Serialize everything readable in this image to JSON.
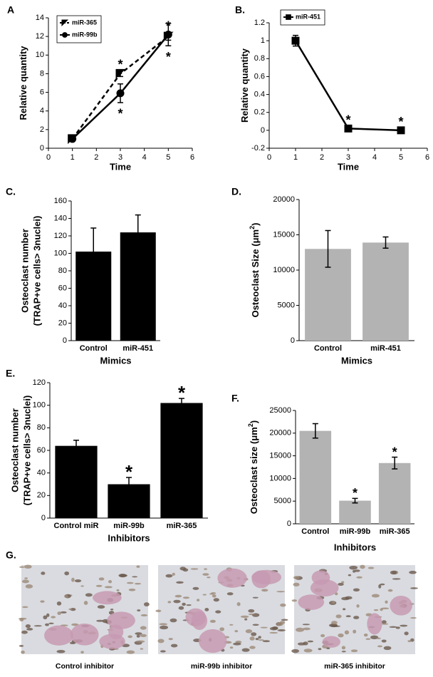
{
  "chart_data": [
    {
      "type": "line",
      "panel_label": "A",
      "xlabel": "Time",
      "ylabel": "Relative quantity",
      "x": [
        1,
        3,
        5
      ],
      "xlim": [
        0,
        6
      ],
      "xticks": [
        0,
        1,
        2,
        3,
        4,
        5,
        6
      ],
      "ylim": [
        0,
        14
      ],
      "yticks": [
        0,
        2,
        4,
        6,
        8,
        10,
        12,
        14
      ],
      "legend": "upper-left",
      "series": [
        {
          "name": "miR-365",
          "color": "#000000",
          "line_style": "dashed",
          "marker": "triangle",
          "values": [
            1,
            8,
            12
          ],
          "errors": [
            0.2,
            0.3,
            0.4
          ],
          "significance": [
            null,
            "*",
            "*"
          ],
          "significance_position": "above"
        },
        {
          "name": "miR-99b",
          "color": "#000000",
          "line_style": "solid",
          "marker": "circle",
          "values": [
            1,
            5.9,
            12.2
          ],
          "errors": [
            0.2,
            1,
            1.2
          ],
          "significance": [
            null,
            "*",
            "*"
          ],
          "significance_position": "below"
        }
      ]
    },
    {
      "type": "line",
      "panel_label": "B.",
      "xlabel": "Time",
      "ylabel": "Relative quantity",
      "x": [
        1,
        3,
        5
      ],
      "xlim": [
        0,
        6
      ],
      "xticks": [
        0,
        1,
        2,
        3,
        4,
        5,
        6
      ],
      "ylim": [
        -0.2,
        1.2
      ],
      "yticks": [
        -0.2,
        0,
        0.2,
        0.4,
        0.6,
        0.8,
        1,
        1.2
      ],
      "legend": "upper-left",
      "series": [
        {
          "name": "miR-451",
          "color": "#000000",
          "line_style": "solid",
          "marker": "square",
          "values": [
            1,
            0.02,
            0
          ],
          "errors": [
            0.06,
            0.02,
            0.02
          ],
          "significance": [
            null,
            "*",
            "*"
          ],
          "significance_position": "above"
        }
      ]
    },
    {
      "type": "bar",
      "panel_label": "C.",
      "xlabel": "Mimics",
      "ylabel": [
        "Osteoclast number",
        "(TRAP+ve cells> 3nuclei)"
      ],
      "categories": [
        "Control",
        "miR-451"
      ],
      "values": [
        102,
        124
      ],
      "errors": [
        27,
        20
      ],
      "color": "#000000",
      "ylim": [
        0,
        160
      ],
      "yticks": [
        0,
        20,
        40,
        60,
        80,
        100,
        120,
        140,
        160
      ]
    },
    {
      "type": "bar",
      "panel_label": "D.",
      "xlabel": "Mimics",
      "ylabel": "Osteoclast Size (μm",
      "ylabel_superscript": "2",
      "ylabel_end": ")",
      "categories": [
        "Control",
        "miR-451"
      ],
      "values": [
        13000,
        13900
      ],
      "errors": [
        2600,
        800
      ],
      "color": "#b3b3b3",
      "ylim": [
        0,
        20000
      ],
      "yticks": [
        0,
        5000,
        10000,
        15000,
        20000
      ]
    },
    {
      "type": "bar",
      "panel_label": "E.",
      "xlabel": "Inhibitors",
      "ylabel": [
        "Osteoclast number",
        "(TRAP+ve cells> 3nuclei)"
      ],
      "categories": [
        "Control miR",
        "miR-99b",
        "miR-365"
      ],
      "values": [
        64,
        30,
        102
      ],
      "errors": [
        5,
        6,
        4
      ],
      "color": "#000000",
      "significance": [
        null,
        "*",
        "*"
      ],
      "ylim": [
        0,
        120
      ],
      "yticks": [
        0,
        20,
        40,
        60,
        80,
        100,
        120
      ]
    },
    {
      "type": "bar",
      "panel_label": "F.",
      "xlabel": "Inhibitors",
      "ylabel": "Osteoclast size (μm",
      "ylabel_superscript": "2",
      "ylabel_end": ")",
      "categories": [
        "Control",
        "miR-99b",
        "miR-365"
      ],
      "values": [
        20500,
        5100,
        13400
      ],
      "errors": [
        1600,
        500,
        1300
      ],
      "color": "#b3b3b3",
      "significance": [
        null,
        "*",
        "*"
      ],
      "ylim": [
        0,
        25000
      ],
      "yticks": [
        0,
        5000,
        10000,
        15000,
        20000,
        25000
      ]
    }
  ],
  "image_panel": {
    "label": "G.",
    "captions": [
      "Control  inhibitor",
      "miR-99b inhibitor",
      "miR-365 inhibitor"
    ]
  }
}
